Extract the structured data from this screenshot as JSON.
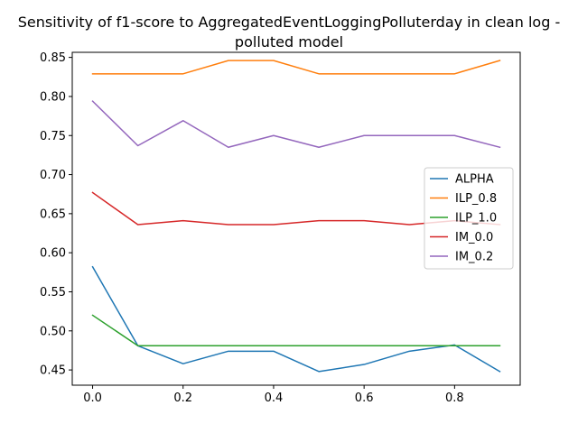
{
  "chart_data": {
    "type": "line",
    "title_lines": [
      "Sensitivity of f1-score to AggregatedEventLoggingPolluterday in clean log -",
      "polluted model"
    ],
    "xlabel": "",
    "ylabel": "",
    "xlim": [
      -0.045,
      0.945
    ],
    "ylim": [
      0.4305,
      0.8565
    ],
    "xticks": [
      0.0,
      0.2,
      0.4,
      0.6,
      0.8
    ],
    "xtick_labels": [
      "0.0",
      "0.2",
      "0.4",
      "0.6",
      "0.8"
    ],
    "yticks": [
      0.45,
      0.5,
      0.55,
      0.6,
      0.65,
      0.7,
      0.75,
      0.8,
      0.85
    ],
    "ytick_labels": [
      "0.45",
      "0.50",
      "0.55",
      "0.60",
      "0.65",
      "0.70",
      "0.75",
      "0.80",
      "0.85"
    ],
    "grid": false,
    "legend_position": "center-right",
    "x": [
      0.0,
      0.1,
      0.2,
      0.3,
      0.4,
      0.5,
      0.6,
      0.7,
      0.8,
      0.9
    ],
    "series": [
      {
        "name": "ALPHA",
        "color": "#1f77b4",
        "values": [
          0.582,
          0.481,
          0.458,
          0.474,
          0.474,
          0.448,
          0.457,
          0.474,
          0.482,
          0.448
        ]
      },
      {
        "name": "ILP_0.8",
        "color": "#ff7f0e",
        "values": [
          0.829,
          0.829,
          0.829,
          0.846,
          0.846,
          0.829,
          0.829,
          0.829,
          0.829,
          0.846
        ]
      },
      {
        "name": "ILP_1.0",
        "color": "#2ca02c",
        "values": [
          0.52,
          0.481,
          0.481,
          0.481,
          0.481,
          0.481,
          0.481,
          0.481,
          0.481,
          0.481
        ]
      },
      {
        "name": "IM_0.0",
        "color": "#d62728",
        "values": [
          0.677,
          0.636,
          0.641,
          0.636,
          0.636,
          0.641,
          0.641,
          0.636,
          0.641,
          0.636
        ]
      },
      {
        "name": "IM_0.2",
        "color": "#9467bd",
        "values": [
          0.794,
          0.737,
          0.769,
          0.735,
          0.75,
          0.735,
          0.75,
          0.75,
          0.75,
          0.735
        ]
      }
    ]
  }
}
